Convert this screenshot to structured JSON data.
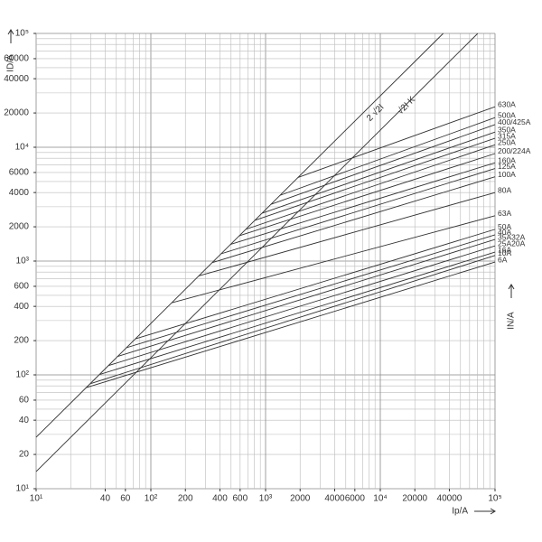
{
  "chart_data": {
    "type": "line",
    "x_label": "Ip/A",
    "y_label": "ID/A",
    "y2_label": "IN/A",
    "log_x": true,
    "log_y": true,
    "color": "#333333",
    "xlim": [
      10,
      100000
    ],
    "ylim": [
      10,
      100000
    ],
    "xticks": [
      {
        "value": 10,
        "label": "10¹"
      },
      40,
      60,
      {
        "value": 100,
        "label": "10²"
      },
      200,
      400,
      600,
      {
        "value": 1000,
        "label": "10³"
      },
      2000,
      4000,
      6000,
      {
        "value": 10000,
        "label": "10⁴"
      },
      20000,
      40000,
      {
        "value": 100000,
        "label": "10⁵"
      }
    ],
    "yticks": [
      {
        "value": 10,
        "label": "10¹"
      },
      20,
      40,
      60,
      {
        "value": 100,
        "label": "10²"
      },
      200,
      400,
      600,
      {
        "value": 1000,
        "label": "10³"
      },
      2000,
      4000,
      6000,
      {
        "value": 10000,
        "label": "10⁴"
      },
      20000,
      40000,
      60000,
      {
        "value": 100000,
        "label": "10⁵"
      }
    ],
    "xticks_minor_labels": [],
    "grid": [
      10,
      20,
      30,
      40,
      50,
      60,
      70,
      80,
      90,
      100,
      200,
      300,
      400,
      500,
      600,
      700,
      800,
      900,
      1000,
      2000,
      3000,
      4000,
      5000,
      6000,
      7000,
      8000,
      9000,
      10000,
      20000,
      30000,
      40000,
      50000,
      60000,
      70000,
      80000,
      90000,
      100000
    ],
    "reference_lines": [
      {
        "name": "2 √2I",
        "x": [
          10,
          35355
        ],
        "values": [
          28.28,
          100000
        ]
      },
      {
        "name": "√2I K",
        "x": [
          10,
          70711
        ],
        "values": [
          14.14,
          100000
        ]
      }
    ],
    "series": [
      {
        "name": "630A",
        "x": [
          1919,
          100000
        ],
        "values": [
          5430,
          22700
        ]
      },
      {
        "name": "500A",
        "x": [
          1336,
          100000
        ],
        "values": [
          3780,
          18200
        ]
      },
      {
        "name": "400/425A",
        "x": [
          1114,
          100000
        ],
        "values": [
          3150,
          15800
        ]
      },
      {
        "name": "350A",
        "x": [
          931,
          100000
        ],
        "values": [
          2630,
          13600
        ]
      },
      {
        "name": "315A",
        "x": [
          805,
          100000
        ],
        "values": [
          2280,
          12000
        ]
      },
      {
        "name": "250A",
        "x": [
          671,
          100000
        ],
        "values": [
          1900,
          10500
        ]
      },
      {
        "name": "200/224A",
        "x": [
          591,
          100000
        ],
        "values": [
          1670,
          8800
        ]
      },
      {
        "name": "160A",
        "x": [
          493,
          100000
        ],
        "values": [
          1400,
          7300
        ]
      },
      {
        "name": "125A",
        "x": [
          411,
          100000
        ],
        "values": [
          1160,
          6500
        ]
      },
      {
        "name": "100A",
        "x": [
          343,
          100000
        ],
        "values": [
          970,
          5500
        ]
      },
      {
        "name": "80A",
        "x": [
          261,
          100000
        ],
        "values": [
          740,
          4000
        ]
      },
      {
        "name": "63A",
        "x": [
          152,
          100000
        ],
        "values": [
          430,
          2500
        ]
      },
      {
        "name": "50A",
        "x": [
          73,
          100000
        ],
        "values": [
          207,
          1900
        ]
      },
      {
        "name": "40A",
        "x": [
          61,
          100000
        ],
        "values": [
          173,
          1700
        ]
      },
      {
        "name": "35A32A",
        "x": [
          51,
          100000
        ],
        "values": [
          145,
          1550
        ]
      },
      {
        "name": "25A20A",
        "x": [
          43,
          100000
        ],
        "values": [
          121,
          1360
        ]
      },
      {
        "name": "16A",
        "x": [
          36,
          100000
        ],
        "values": [
          101,
          1200
        ]
      },
      {
        "name": "10A",
        "x": [
          30,
          100000
        ],
        "values": [
          84,
          1120
        ]
      },
      {
        "name": "6A",
        "x": [
          27,
          100000
        ],
        "values": [
          77,
          980
        ]
      }
    ]
  }
}
